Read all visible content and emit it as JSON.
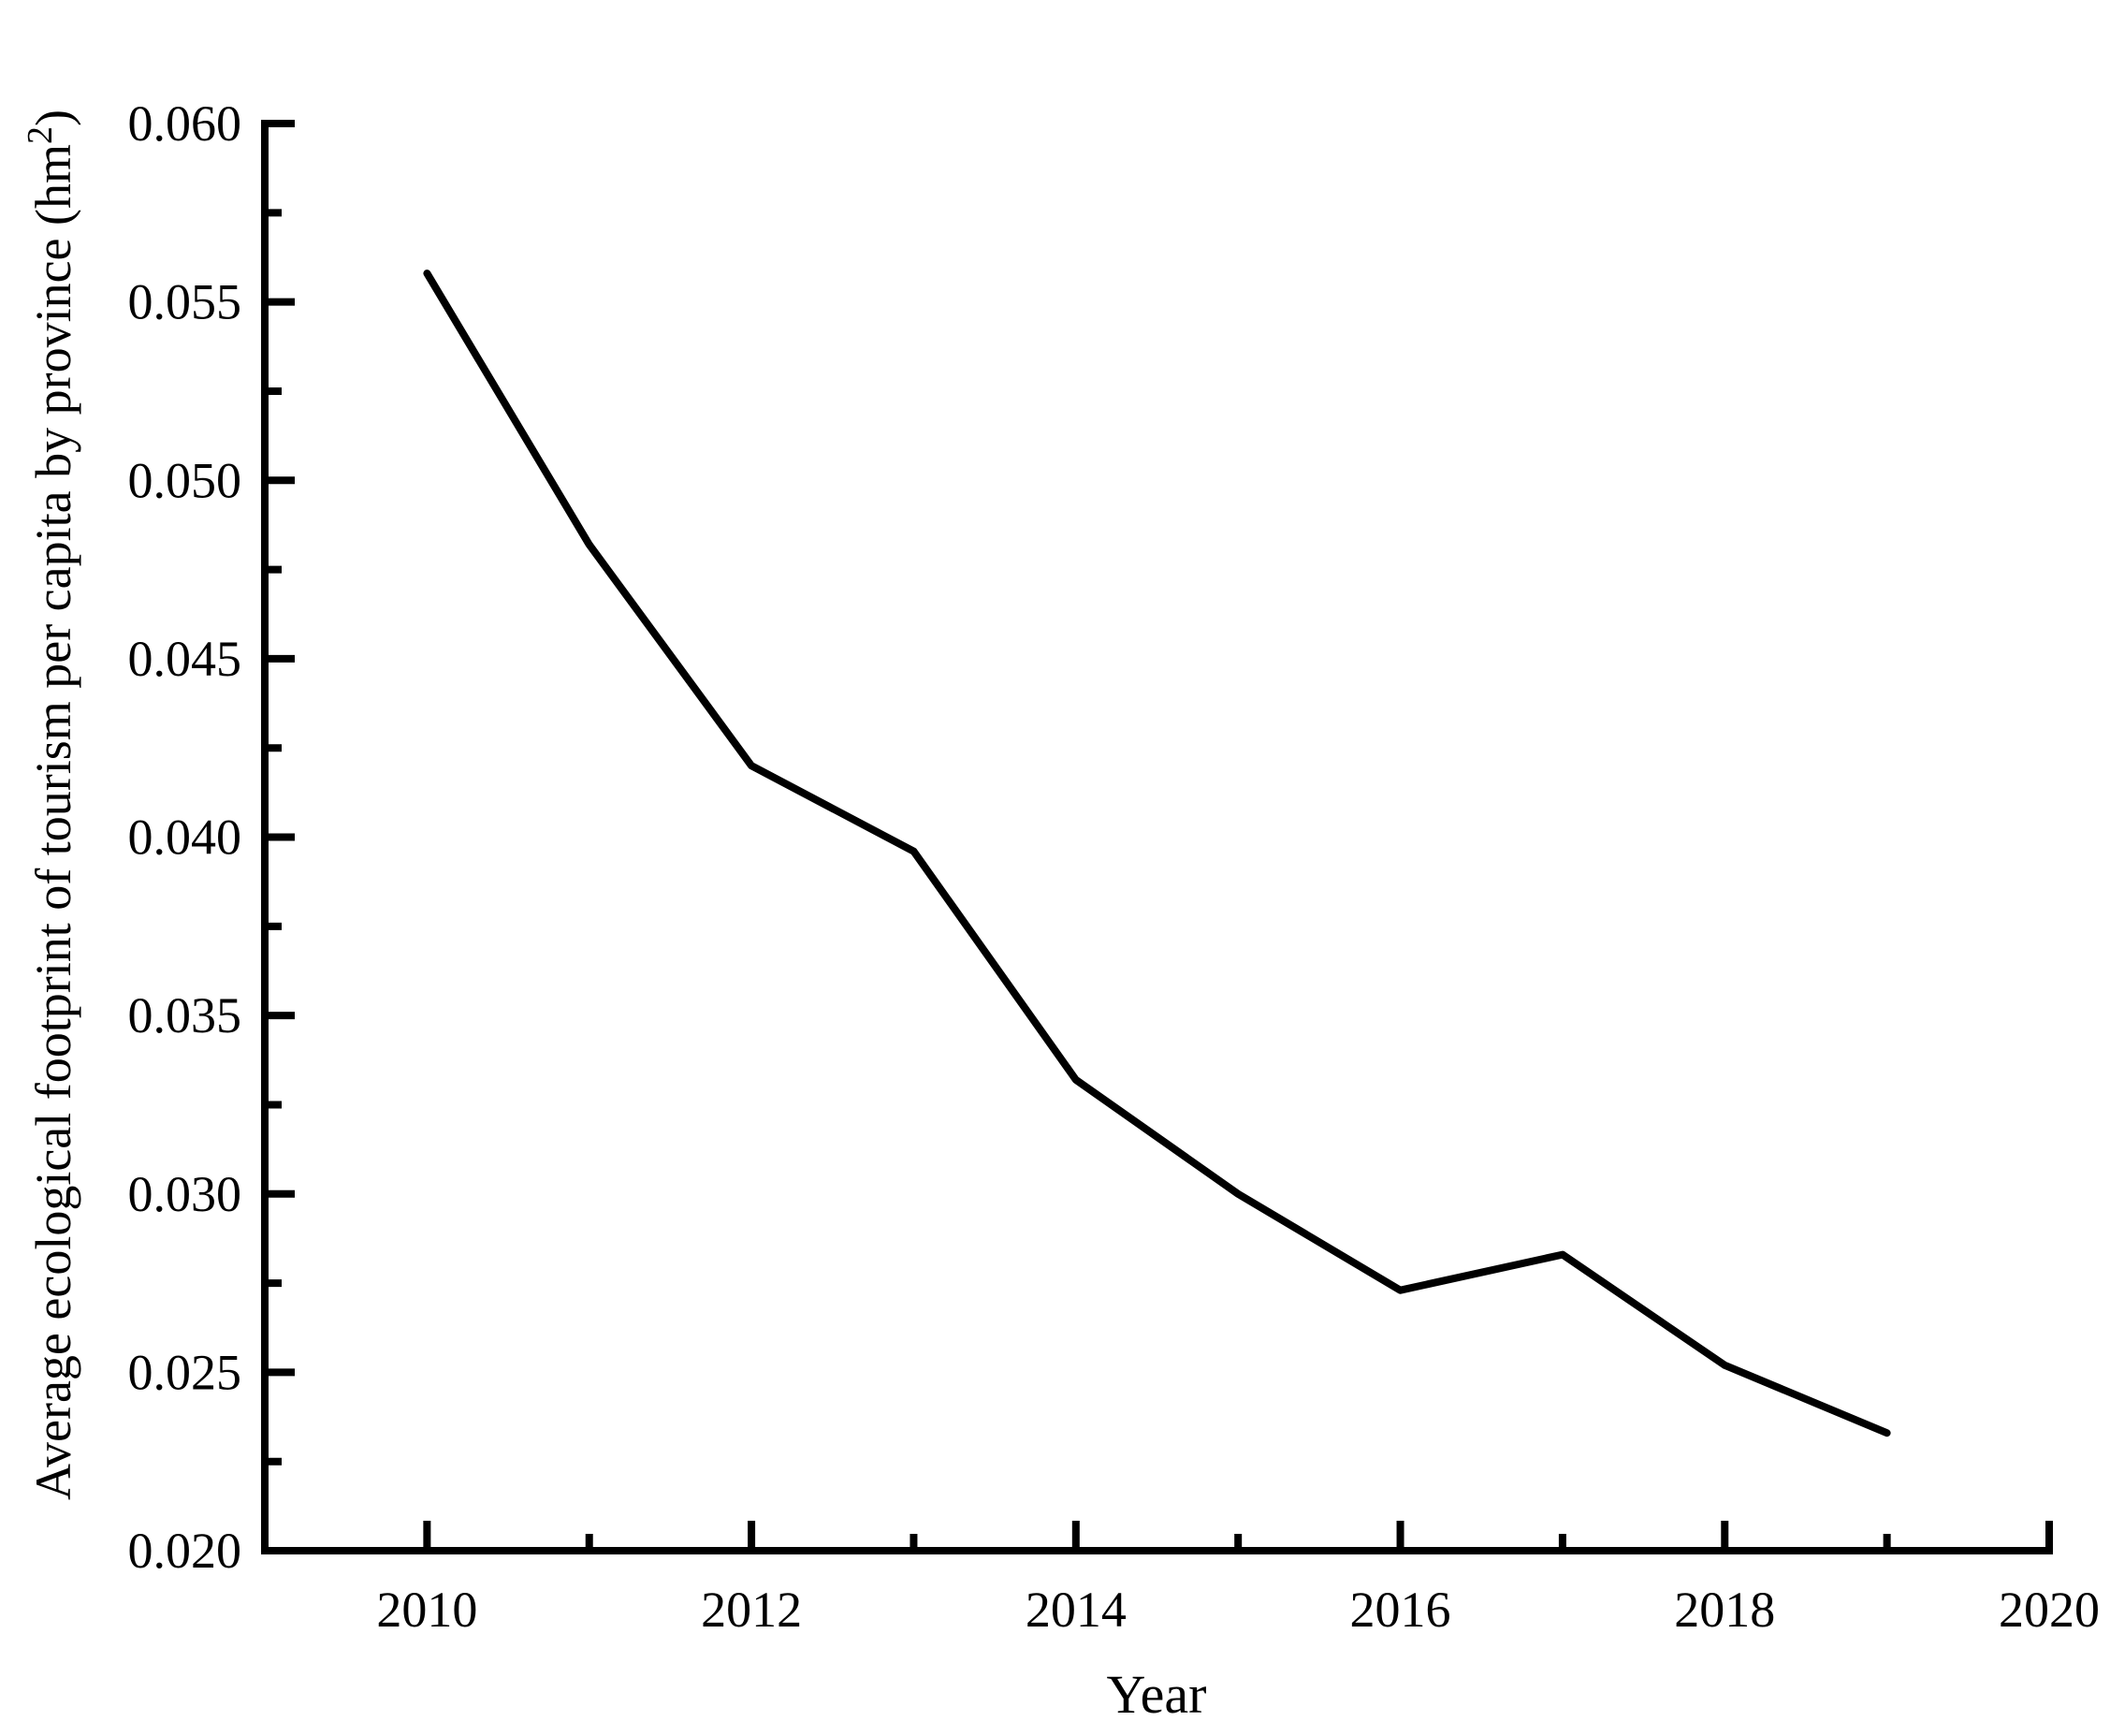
{
  "figure": {
    "background": "#ffffff",
    "ink_color": "#000000"
  },
  "chart_data": {
    "type": "line",
    "title": "",
    "xlabel": "Year",
    "ylabel": "Average ecological footprint of tourism per capita by province (hm²)",
    "ylabel_parts": {
      "prefix": "Average ecological footprint of tourism per capita by province (hm",
      "superscript": "2",
      "suffix": ")"
    },
    "x": [
      2010,
      2011,
      2012,
      2013,
      2014,
      2015,
      2016,
      2017,
      2018,
      2019
    ],
    "values": [
      0.0558,
      0.0482,
      0.042,
      0.0396,
      0.0332,
      0.03,
      0.0273,
      0.0283,
      0.0252,
      0.0233
    ],
    "xlim": [
      2009,
      2020
    ],
    "ylim": [
      0.02,
      0.06
    ],
    "x_major_ticks": [
      2010,
      2012,
      2014,
      2016,
      2018,
      2020
    ],
    "x_minor_ticks": [
      2011,
      2013,
      2015,
      2017,
      2019
    ],
    "y_major_ticks": [
      0.02,
      0.025,
      0.03,
      0.035,
      0.04,
      0.045,
      0.05,
      0.055,
      0.06
    ],
    "y_minor_ticks": [
      0.0225,
      0.0275,
      0.0325,
      0.0375,
      0.0425,
      0.0475,
      0.0525,
      0.0575
    ],
    "y_tick_decimals": 3,
    "grid": false,
    "legend": false,
    "line_color": "#000000",
    "line_width": 8
  }
}
